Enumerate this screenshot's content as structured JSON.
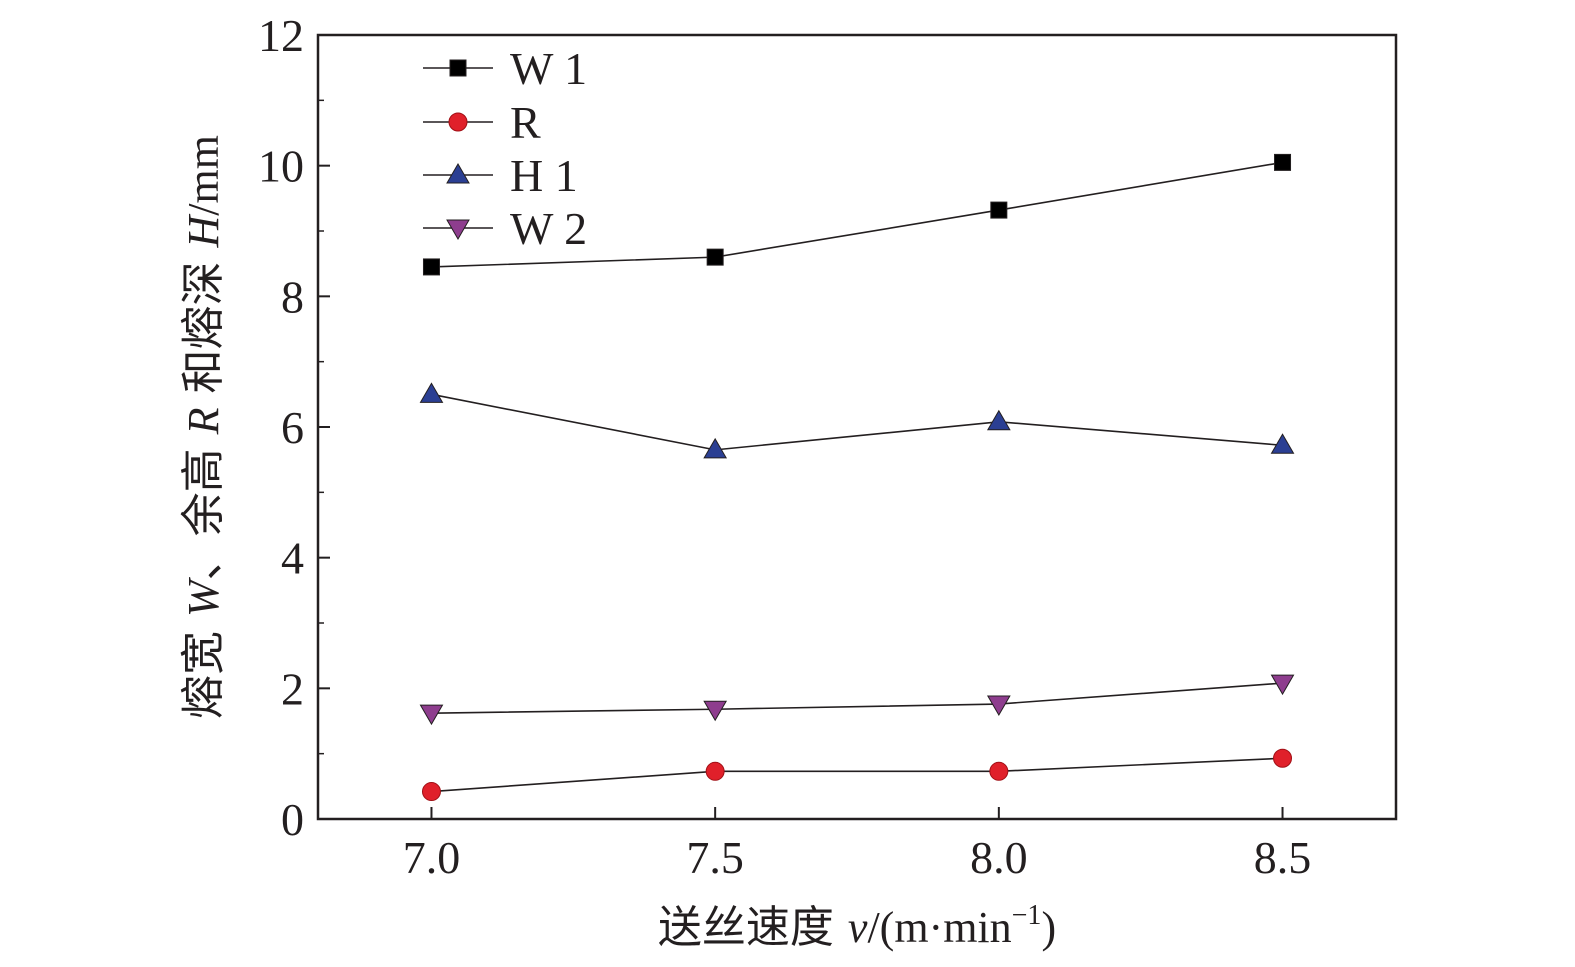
{
  "chart_data": {
    "type": "line",
    "x": [
      7.0,
      7.5,
      8.0,
      8.5
    ],
    "x_tick_labels": [
      "7.0",
      "7.5",
      "8.0",
      "8.5"
    ],
    "y_tick_labels": [
      "0",
      "2",
      "4",
      "6",
      "8",
      "10",
      "12"
    ],
    "xlim": [
      6.8,
      8.7
    ],
    "ylim": [
      0,
      12
    ],
    "xlabel": {
      "prefix": "送丝速度 ",
      "var": "v",
      "unit": "/(m·min",
      "sup": "−1",
      "close": ")"
    },
    "ylabel": {
      "p1": "熔宽 ",
      "v1": "W",
      "p2": "、余高 ",
      "v2": "R",
      "p3": " 和熔深 ",
      "v3": "H",
      "unit": "/mm"
    },
    "legend_position": "top-left",
    "grid": false,
    "series": [
      {
        "name": "W 1",
        "marker": "square",
        "color": "#000000",
        "values": [
          8.45,
          8.6,
          9.32,
          10.05
        ]
      },
      {
        "name": "R",
        "marker": "circle",
        "color": "#e0202a",
        "values": [
          0.42,
          0.73,
          0.73,
          0.93
        ]
      },
      {
        "name": "H 1",
        "marker": "triangle-up",
        "color": "#2b3f93",
        "values": [
          6.5,
          5.65,
          6.08,
          5.72
        ]
      },
      {
        "name": "W 2",
        "marker": "triangle-down",
        "color": "#8e3d8e",
        "values": [
          1.62,
          1.68,
          1.76,
          2.08
        ]
      }
    ]
  }
}
